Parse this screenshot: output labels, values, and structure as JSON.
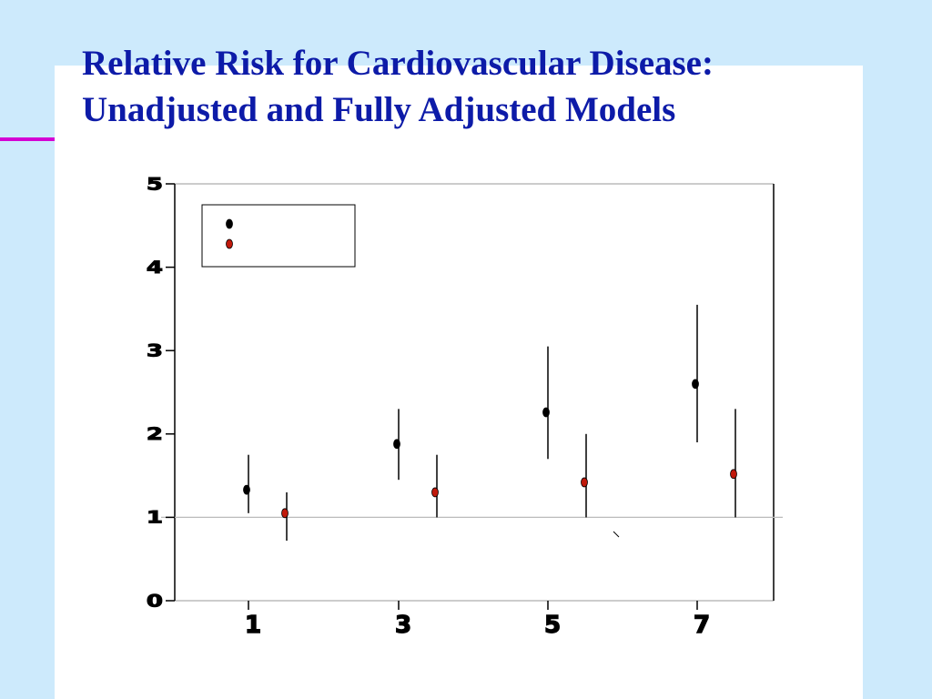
{
  "slide": {
    "title_line1": "Relative Risk for Cardiovascular Disease:",
    "title_line2": "Unadjusted and Fully Adjusted Models",
    "accent_color": "#d400d4",
    "title_color": "#0d1ba8",
    "background_color": "#cdeafc"
  },
  "chart_data": {
    "type": "scatter",
    "subtype": "point-estimates-with-confidence-intervals",
    "title": "",
    "xlabel": "",
    "ylabel": "",
    "categories": [
      "1",
      "3",
      "5",
      "7"
    ],
    "ylim": [
      0,
      5
    ],
    "yticks": [
      0,
      1,
      2,
      3,
      4,
      5
    ],
    "ytick_labels": [
      "0",
      "1",
      "2",
      "3",
      "4",
      "5"
    ],
    "reference_line": 1,
    "grid": false,
    "legend_position": "top-left",
    "series": [
      {
        "color": "#000000",
        "values": [
          1.33,
          1.88,
          2.26,
          2.6
        ],
        "ci_lower": [
          1.05,
          1.45,
          1.7,
          1.9
        ],
        "ci_upper": [
          1.75,
          2.3,
          3.05,
          3.55
        ]
      },
      {
        "color": "#c0190b",
        "values": [
          1.05,
          1.3,
          1.42,
          1.52
        ],
        "ci_lower": [
          0.72,
          1.0,
          1.0,
          1.0
        ],
        "ci_upper": [
          1.3,
          1.75,
          2.0,
          2.3
        ]
      }
    ]
  }
}
